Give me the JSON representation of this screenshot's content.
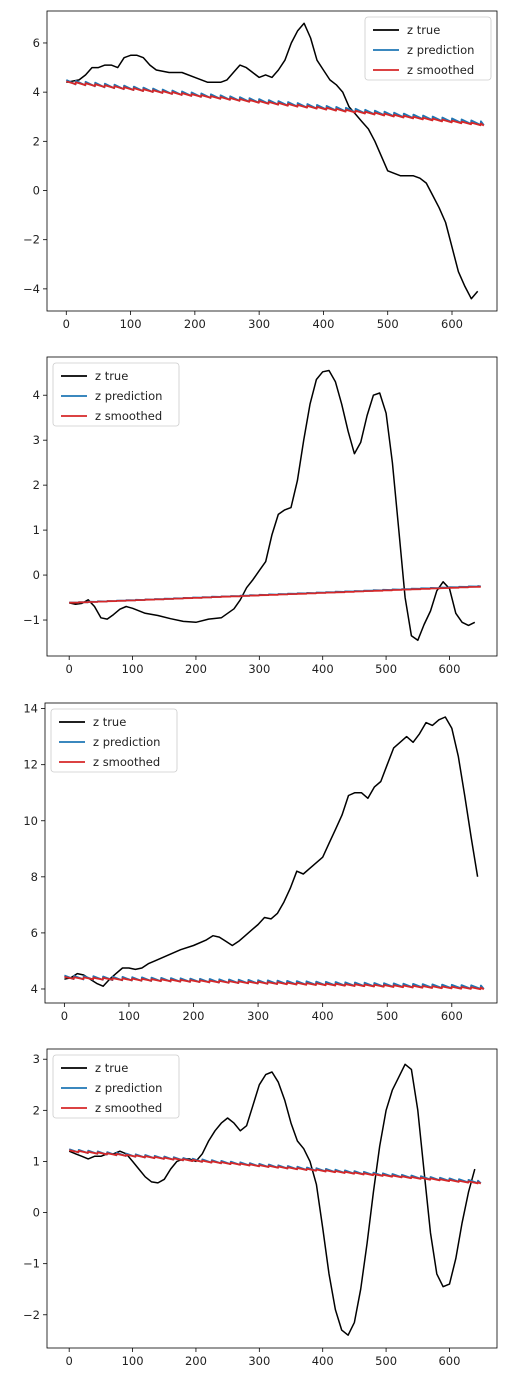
{
  "chart_data": [
    {
      "type": "line",
      "xlim": [
        -30,
        670
      ],
      "ylim": [
        -4.9,
        7.3
      ],
      "xticks": [
        0,
        100,
        200,
        300,
        400,
        500,
        600
      ],
      "yticks": [
        -4,
        -2,
        0,
        2,
        4,
        6
      ],
      "legend_position": "top-right",
      "series": [
        {
          "name": "z true",
          "color": "#000000",
          "x": [
            0,
            20,
            30,
            40,
            50,
            60,
            70,
            80,
            90,
            100,
            110,
            120,
            130,
            140,
            160,
            180,
            200,
            220,
            240,
            250,
            260,
            270,
            280,
            290,
            300,
            310,
            320,
            330,
            340,
            350,
            360,
            370,
            380,
            390,
            400,
            410,
            420,
            430,
            440,
            450,
            460,
            470,
            480,
            490,
            500,
            510,
            520,
            530,
            540,
            550,
            560,
            570,
            580,
            590,
            600,
            610,
            620,
            630,
            640
          ],
          "y": [
            4.4,
            4.5,
            4.7,
            5.0,
            5.0,
            5.1,
            5.1,
            5.0,
            5.4,
            5.5,
            5.5,
            5.4,
            5.1,
            4.9,
            4.8,
            4.8,
            4.6,
            4.4,
            4.4,
            4.5,
            4.8,
            5.1,
            5.0,
            4.8,
            4.6,
            4.7,
            4.6,
            4.9,
            5.3,
            6.0,
            6.5,
            6.8,
            6.2,
            5.3,
            4.9,
            4.5,
            4.3,
            4.0,
            3.4,
            3.1,
            2.8,
            2.5,
            2.0,
            1.4,
            0.8,
            0.7,
            0.6,
            0.6,
            0.6,
            0.5,
            0.3,
            -0.2,
            -0.7,
            -1.3,
            -2.3,
            -3.3,
            -3.9,
            -4.4,
            -4.1
          ]
        },
        {
          "name": "z prediction",
          "color": "#1f77b4",
          "x": [
            0,
            650
          ],
          "y": [
            4.38,
            2.68
          ],
          "sawtooth": 0.12
        },
        {
          "name": "z smoothed",
          "color": "#d62728",
          "x": [
            0,
            650
          ],
          "y": [
            4.38,
            2.65
          ],
          "sawtooth": 0.06
        }
      ]
    },
    {
      "type": "line",
      "xlim": [
        -35,
        675
      ],
      "ylim": [
        -1.8,
        4.85
      ],
      "xticks": [
        0,
        100,
        200,
        300,
        400,
        500,
        600
      ],
      "yticks": [
        -1,
        0,
        1,
        2,
        3,
        4
      ],
      "legend_position": "top-left",
      "series": [
        {
          "name": "z true",
          "color": "#000000",
          "x": [
            0,
            10,
            20,
            30,
            40,
            50,
            60,
            70,
            80,
            90,
            100,
            120,
            140,
            160,
            180,
            200,
            220,
            240,
            260,
            270,
            280,
            290,
            300,
            310,
            320,
            330,
            340,
            350,
            360,
            370,
            380,
            390,
            400,
            410,
            420,
            430,
            440,
            450,
            460,
            470,
            480,
            490,
            500,
            510,
            520,
            530,
            540,
            550,
            560,
            570,
            580,
            590,
            600,
            610,
            620,
            630,
            640
          ],
          "y": [
            -0.62,
            -0.65,
            -0.63,
            -0.55,
            -0.7,
            -0.95,
            -0.98,
            -0.88,
            -0.76,
            -0.7,
            -0.74,
            -0.85,
            -0.9,
            -0.97,
            -1.03,
            -1.05,
            -0.98,
            -0.95,
            -0.75,
            -0.55,
            -0.28,
            -0.1,
            0.1,
            0.3,
            0.9,
            1.35,
            1.45,
            1.5,
            2.1,
            3.0,
            3.8,
            4.35,
            4.52,
            4.55,
            4.3,
            3.8,
            3.2,
            2.7,
            2.95,
            3.55,
            4.0,
            4.05,
            3.6,
            2.5,
            1.0,
            -0.5,
            -1.35,
            -1.45,
            -1.1,
            -0.8,
            -0.35,
            -0.15,
            -0.3,
            -0.85,
            -1.05,
            -1.12,
            -1.05
          ]
        },
        {
          "name": "z prediction",
          "color": "#1f77b4",
          "x": [
            0,
            650
          ],
          "y": [
            -0.62,
            -0.25
          ],
          "sawtooth": 0.01
        },
        {
          "name": "z smoothed",
          "color": "#d62728",
          "x": [
            0,
            650
          ],
          "y": [
            -0.62,
            -0.26
          ],
          "sawtooth": 0.005
        }
      ]
    },
    {
      "type": "line",
      "xlim": [
        -30,
        670
      ],
      "ylim": [
        3.5,
        14.2
      ],
      "xticks": [
        0,
        100,
        200,
        300,
        400,
        500,
        600
      ],
      "yticks": [
        4,
        6,
        8,
        10,
        12,
        14
      ],
      "legend_position": "top-left",
      "series": [
        {
          "name": "z true",
          "color": "#000000",
          "x": [
            0,
            10,
            20,
            30,
            40,
            50,
            60,
            70,
            80,
            90,
            100,
            110,
            120,
            130,
            140,
            160,
            180,
            200,
            220,
            230,
            240,
            250,
            260,
            270,
            280,
            290,
            300,
            310,
            320,
            330,
            340,
            350,
            360,
            370,
            380,
            390,
            400,
            410,
            420,
            430,
            440,
            450,
            460,
            470,
            480,
            490,
            500,
            510,
            520,
            530,
            540,
            550,
            560,
            570,
            580,
            590,
            600,
            610,
            620,
            630,
            640
          ],
          "y": [
            4.35,
            4.4,
            4.55,
            4.5,
            4.35,
            4.2,
            4.1,
            4.35,
            4.55,
            4.75,
            4.75,
            4.7,
            4.75,
            4.9,
            5.0,
            5.2,
            5.4,
            5.55,
            5.75,
            5.9,
            5.85,
            5.7,
            5.55,
            5.7,
            5.9,
            6.1,
            6.3,
            6.55,
            6.5,
            6.7,
            7.1,
            7.6,
            8.2,
            8.1,
            8.3,
            8.5,
            8.7,
            9.2,
            9.7,
            10.2,
            10.9,
            11.0,
            11.0,
            10.8,
            11.2,
            11.4,
            12.0,
            12.6,
            12.8,
            13.0,
            12.8,
            13.1,
            13.5,
            13.4,
            13.6,
            13.7,
            13.3,
            12.3,
            10.9,
            9.4,
            8.0
          ]
        },
        {
          "name": "z prediction",
          "color": "#1f77b4",
          "x": [
            0,
            650
          ],
          "y": [
            4.38,
            4.02
          ],
          "sawtooth": 0.1
        },
        {
          "name": "z smoothed",
          "color": "#d62728",
          "x": [
            0,
            650
          ],
          "y": [
            4.38,
            4.0
          ],
          "sawtooth": 0.05
        }
      ]
    },
    {
      "type": "line",
      "xlim": [
        -35,
        675
      ],
      "ylim": [
        -2.65,
        3.2
      ],
      "xticks": [
        0,
        100,
        200,
        300,
        400,
        500,
        600
      ],
      "yticks": [
        -2,
        -1,
        0,
        1,
        2,
        3
      ],
      "legend_position": "top-left",
      "series": [
        {
          "name": "z true",
          "color": "#000000",
          "x": [
            0,
            10,
            20,
            30,
            40,
            50,
            60,
            70,
            80,
            90,
            100,
            110,
            120,
            130,
            140,
            150,
            160,
            170,
            180,
            190,
            200,
            210,
            220,
            230,
            240,
            250,
            260,
            270,
            280,
            290,
            300,
            310,
            320,
            330,
            340,
            350,
            360,
            370,
            380,
            390,
            400,
            410,
            420,
            430,
            440,
            450,
            460,
            470,
            480,
            490,
            500,
            510,
            520,
            530,
            540,
            550,
            560,
            570,
            580,
            590,
            600,
            610,
            620,
            630,
            640
          ],
          "y": [
            1.2,
            1.15,
            1.1,
            1.05,
            1.1,
            1.1,
            1.15,
            1.15,
            1.2,
            1.15,
            1.0,
            0.85,
            0.7,
            0.6,
            0.58,
            0.65,
            0.85,
            1.0,
            1.05,
            1.05,
            1.0,
            1.15,
            1.4,
            1.6,
            1.75,
            1.85,
            1.75,
            1.6,
            1.7,
            2.1,
            2.5,
            2.7,
            2.75,
            2.55,
            2.2,
            1.75,
            1.4,
            1.25,
            1.0,
            0.55,
            -0.3,
            -1.2,
            -1.9,
            -2.3,
            -2.4,
            -2.15,
            -1.5,
            -0.6,
            0.4,
            1.3,
            2.0,
            2.4,
            2.65,
            2.9,
            2.8,
            2.0,
            0.8,
            -0.4,
            -1.2,
            -1.45,
            -1.4,
            -0.9,
            -0.2,
            0.4,
            0.85
          ]
        },
        {
          "name": "z prediction",
          "color": "#1f77b4",
          "x": [
            0,
            650
          ],
          "y": [
            1.2,
            0.58
          ],
          "sawtooth": 0.04
        },
        {
          "name": "z smoothed",
          "color": "#d62728",
          "x": [
            0,
            650
          ],
          "y": [
            1.2,
            0.57
          ],
          "sawtooth": 0.02
        }
      ]
    }
  ]
}
